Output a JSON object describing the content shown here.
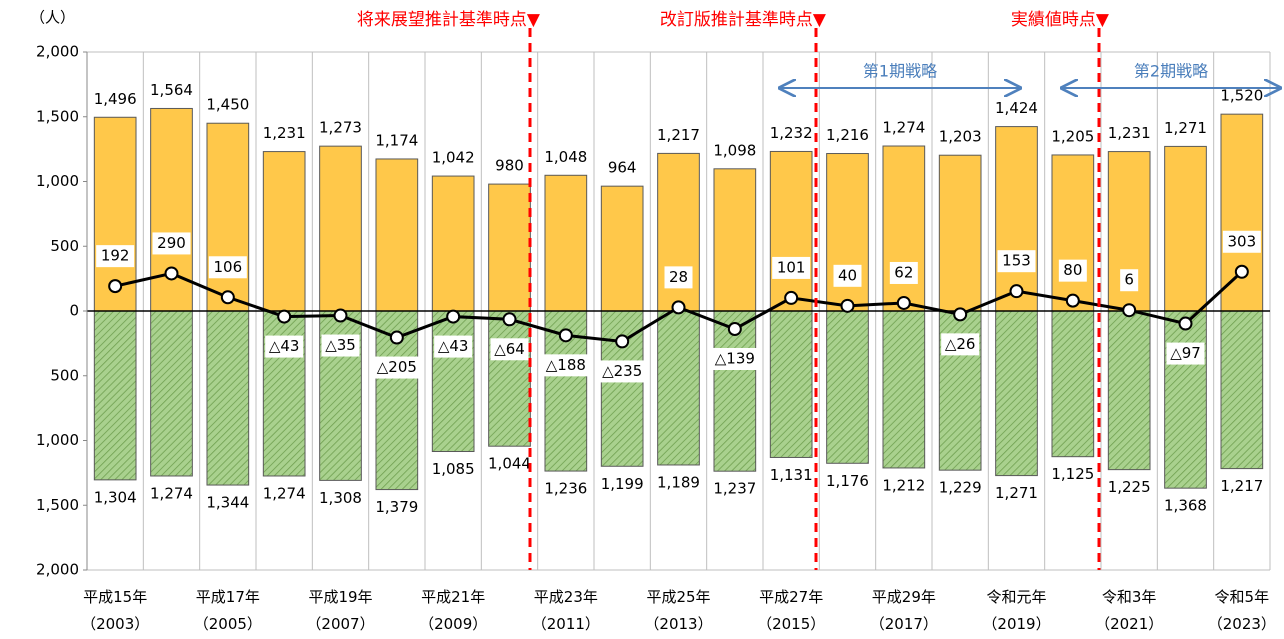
{
  "chart_data": {
    "type": "bar_line",
    "unit_label": "（人）",
    "categories": [
      "平成15年\n（2003）",
      null,
      "平成17年\n（2005）",
      null,
      "平成19年\n（2007）",
      null,
      "平成21年\n（2009）",
      null,
      "平成23年\n（2011）",
      null,
      "平成25年\n（2013）",
      null,
      "平成27年\n（2015）",
      null,
      "平成29年\n（2017）",
      null,
      "令和元年\n（2019）",
      null,
      "令和3年\n（2021）",
      null,
      "令和5年\n（2023）"
    ],
    "series": [
      {
        "kind": "bar",
        "color": "#ffc84a",
        "values": [
          1496,
          1564,
          1450,
          1231,
          1273,
          1174,
          1042,
          980,
          1048,
          964,
          1217,
          1098,
          1232,
          1216,
          1274,
          1203,
          1424,
          1205,
          1231,
          1271,
          1520
        ],
        "value_labels": [
          "1,496",
          "1,564",
          "1,450",
          "1,231",
          "1,273",
          "1,174",
          "1,042",
          "980",
          "1,048",
          "964",
          "1,217",
          "1,098",
          "1,232",
          "1,216",
          "1,274",
          "1,203",
          "1,424",
          "1,205",
          "1,231",
          "1,271",
          "1,520"
        ]
      },
      {
        "kind": "bar",
        "color": "#a9d18e",
        "values": [
          -1304,
          -1274,
          -1344,
          -1274,
          -1308,
          -1379,
          -1085,
          -1044,
          -1236,
          -1199,
          -1189,
          -1237,
          -1131,
          -1176,
          -1212,
          -1229,
          -1271,
          -1125,
          -1225,
          -1368,
          -1217
        ],
        "value_labels": [
          "1,304",
          "1,274",
          "1,344",
          "1,274",
          "1,308",
          "1,379",
          "1,085",
          "1,044",
          "1,236",
          "1,199",
          "1,189",
          "1,237",
          "1,131",
          "1,176",
          "1,212",
          "1,229",
          "1,271",
          "1,125",
          "1,225",
          "1,368",
          "1,217"
        ]
      },
      {
        "kind": "line",
        "color": "#000000",
        "values": [
          192,
          290,
          106,
          -43,
          -35,
          -205,
          -43,
          -64,
          -188,
          -235,
          28,
          -139,
          101,
          40,
          62,
          -26,
          153,
          80,
          6,
          -97,
          303
        ],
        "value_labels": [
          "192",
          "290",
          "106",
          "△43",
          "△35",
          "△205",
          "△43",
          "△64",
          "△188",
          "△235",
          "28",
          "△139",
          "101",
          "40",
          "62",
          "△26",
          "153",
          "80",
          "6",
          "△97",
          "303"
        ]
      }
    ],
    "ylim": [
      -2000,
      2000
    ],
    "yticks": [
      {
        "value": -2000,
        "label": "2,000"
      },
      {
        "value": -1500,
        "label": "1,500"
      },
      {
        "value": -1000,
        "label": "1,000"
      },
      {
        "value": -500,
        "label": "500"
      },
      0,
      500,
      {
        "value": 1000,
        "label": "1,000"
      },
      {
        "value": 1500,
        "label": "1,500"
      },
      {
        "value": 2000,
        "label": "2,000"
      }
    ],
    "markers": [
      "将来展望推計基準時点▼",
      "改訂版推計基準時点▼",
      "実績値時点▼"
    ],
    "periods": [
      "第1期戦略",
      "第2期戦略"
    ]
  }
}
